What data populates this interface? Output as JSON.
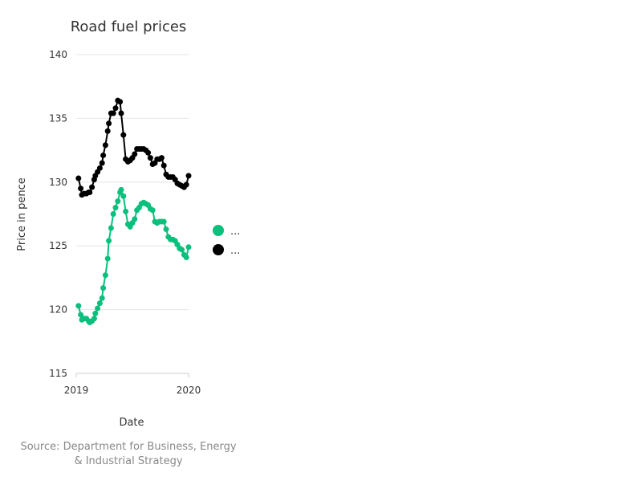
{
  "chart_data": {
    "type": "line",
    "title": "Road fuel prices",
    "xlabel": "Date",
    "ylabel": "Price in pence",
    "source_line1": "Source: Department for Business, Energy",
    "source_line2": "& Industrial Strategy",
    "xlim": [
      2019.0,
      2020.0
    ],
    "ylim": [
      115,
      140
    ],
    "xticks": [
      2019,
      2020
    ],
    "xtick_labels": [
      "2019",
      "2020"
    ],
    "yticks": [
      115,
      120,
      125,
      130,
      135,
      140
    ],
    "grid": true,
    "legend_position": "right",
    "series": [
      {
        "name": "...",
        "color": "#0bbf7d",
        "values": [
          {
            "x": 2019.02,
            "y": 120.3
          },
          {
            "x": 2019.04,
            "y": 119.6
          },
          {
            "x": 2019.05,
            "y": 119.2
          },
          {
            "x": 2019.07,
            "y": 119.3
          },
          {
            "x": 2019.09,
            "y": 119.3
          },
          {
            "x": 2019.11,
            "y": 119.1
          },
          {
            "x": 2019.12,
            "y": 119.0
          },
          {
            "x": 2019.14,
            "y": 119.1
          },
          {
            "x": 2019.16,
            "y": 119.3
          },
          {
            "x": 2019.17,
            "y": 119.7
          },
          {
            "x": 2019.19,
            "y": 120.1
          },
          {
            "x": 2019.21,
            "y": 120.5
          },
          {
            "x": 2019.23,
            "y": 120.9
          },
          {
            "x": 2019.24,
            "y": 121.7
          },
          {
            "x": 2019.26,
            "y": 122.7
          },
          {
            "x": 2019.28,
            "y": 124.0
          },
          {
            "x": 2019.29,
            "y": 125.4
          },
          {
            "x": 2019.31,
            "y": 126.4
          },
          {
            "x": 2019.33,
            "y": 127.5
          },
          {
            "x": 2019.35,
            "y": 128.0
          },
          {
            "x": 2019.37,
            "y": 128.5
          },
          {
            "x": 2019.39,
            "y": 129.2
          },
          {
            "x": 2019.4,
            "y": 129.4
          },
          {
            "x": 2019.42,
            "y": 128.9
          },
          {
            "x": 2019.44,
            "y": 127.7
          },
          {
            "x": 2019.46,
            "y": 126.7
          },
          {
            "x": 2019.48,
            "y": 126.5
          },
          {
            "x": 2019.5,
            "y": 126.8
          },
          {
            "x": 2019.52,
            "y": 127.1
          },
          {
            "x": 2019.54,
            "y": 127.8
          },
          {
            "x": 2019.56,
            "y": 128.0
          },
          {
            "x": 2019.58,
            "y": 128.3
          },
          {
            "x": 2019.6,
            "y": 128.4
          },
          {
            "x": 2019.62,
            "y": 128.3
          },
          {
            "x": 2019.64,
            "y": 128.2
          },
          {
            "x": 2019.66,
            "y": 127.9
          },
          {
            "x": 2019.68,
            "y": 127.8
          },
          {
            "x": 2019.7,
            "y": 126.9
          },
          {
            "x": 2019.72,
            "y": 126.8
          },
          {
            "x": 2019.74,
            "y": 126.9
          },
          {
            "x": 2019.76,
            "y": 126.9
          },
          {
            "x": 2019.78,
            "y": 126.9
          },
          {
            "x": 2019.8,
            "y": 126.3
          },
          {
            "x": 2019.82,
            "y": 125.7
          },
          {
            "x": 2019.84,
            "y": 125.5
          },
          {
            "x": 2019.86,
            "y": 125.5
          },
          {
            "x": 2019.88,
            "y": 125.4
          },
          {
            "x": 2019.9,
            "y": 125.1
          },
          {
            "x": 2019.92,
            "y": 124.8
          },
          {
            "x": 2019.94,
            "y": 124.7
          },
          {
            "x": 2019.96,
            "y": 124.3
          },
          {
            "x": 2019.98,
            "y": 124.1
          },
          {
            "x": 2020.0,
            "y": 124.9
          }
        ]
      },
      {
        "name": "...",
        "color": "#000000",
        "values": [
          {
            "x": 2019.02,
            "y": 130.3
          },
          {
            "x": 2019.04,
            "y": 129.5
          },
          {
            "x": 2019.05,
            "y": 129.0
          },
          {
            "x": 2019.07,
            "y": 129.1
          },
          {
            "x": 2019.09,
            "y": 129.1
          },
          {
            "x": 2019.11,
            "y": 129.2
          },
          {
            "x": 2019.12,
            "y": 129.2
          },
          {
            "x": 2019.14,
            "y": 129.6
          },
          {
            "x": 2019.16,
            "y": 130.2
          },
          {
            "x": 2019.17,
            "y": 130.5
          },
          {
            "x": 2019.19,
            "y": 130.8
          },
          {
            "x": 2019.21,
            "y": 131.1
          },
          {
            "x": 2019.23,
            "y": 131.5
          },
          {
            "x": 2019.24,
            "y": 132.1
          },
          {
            "x": 2019.26,
            "y": 132.9
          },
          {
            "x": 2019.28,
            "y": 134.0
          },
          {
            "x": 2019.29,
            "y": 134.6
          },
          {
            "x": 2019.31,
            "y": 135.4
          },
          {
            "x": 2019.33,
            "y": 135.4
          },
          {
            "x": 2019.35,
            "y": 135.8
          },
          {
            "x": 2019.37,
            "y": 136.4
          },
          {
            "x": 2019.39,
            "y": 136.3
          },
          {
            "x": 2019.4,
            "y": 135.4
          },
          {
            "x": 2019.42,
            "y": 133.7
          },
          {
            "x": 2019.44,
            "y": 131.8
          },
          {
            "x": 2019.46,
            "y": 131.6
          },
          {
            "x": 2019.48,
            "y": 131.7
          },
          {
            "x": 2019.5,
            "y": 131.9
          },
          {
            "x": 2019.52,
            "y": 132.2
          },
          {
            "x": 2019.54,
            "y": 132.6
          },
          {
            "x": 2019.56,
            "y": 132.6
          },
          {
            "x": 2019.58,
            "y": 132.6
          },
          {
            "x": 2019.6,
            "y": 132.6
          },
          {
            "x": 2019.62,
            "y": 132.5
          },
          {
            "x": 2019.64,
            "y": 132.3
          },
          {
            "x": 2019.66,
            "y": 131.9
          },
          {
            "x": 2019.68,
            "y": 131.4
          },
          {
            "x": 2019.7,
            "y": 131.5
          },
          {
            "x": 2019.72,
            "y": 131.8
          },
          {
            "x": 2019.74,
            "y": 131.8
          },
          {
            "x": 2019.76,
            "y": 131.9
          },
          {
            "x": 2019.78,
            "y": 131.3
          },
          {
            "x": 2019.8,
            "y": 130.6
          },
          {
            "x": 2019.82,
            "y": 130.4
          },
          {
            "x": 2019.84,
            "y": 130.4
          },
          {
            "x": 2019.86,
            "y": 130.4
          },
          {
            "x": 2019.88,
            "y": 130.2
          },
          {
            "x": 2019.9,
            "y": 129.9
          },
          {
            "x": 2019.92,
            "y": 129.8
          },
          {
            "x": 2019.94,
            "y": 129.7
          },
          {
            "x": 2019.96,
            "y": 129.6
          },
          {
            "x": 2019.98,
            "y": 129.8
          },
          {
            "x": 2020.0,
            "y": 130.5
          }
        ]
      }
    ]
  }
}
